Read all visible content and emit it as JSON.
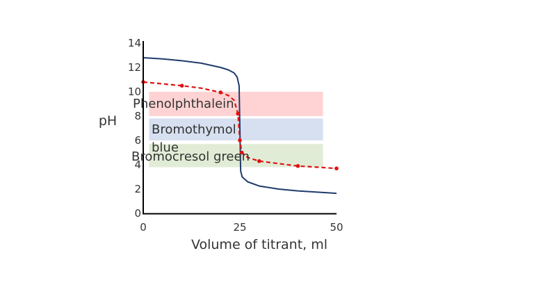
{
  "chart_data": {
    "type": "line",
    "xlabel": "Volume of titrant, ml",
    "ylabel": "pH",
    "xlim": [
      0,
      50
    ],
    "ylim": [
      0,
      14
    ],
    "x_ticks": [
      "0",
      "25",
      "50"
    ],
    "y_ticks": [
      "0",
      "2",
      "4",
      "6",
      "8",
      "10",
      "12",
      "14"
    ],
    "grid": false,
    "series": [
      {
        "style": "solid",
        "color": "#1f3b6b",
        "points": [
          [
            0,
            12.8
          ],
          [
            5,
            12.7
          ],
          [
            10,
            12.55
          ],
          [
            15,
            12.35
          ],
          [
            20,
            12.0
          ],
          [
            22,
            11.8
          ],
          [
            23.5,
            11.55
          ],
          [
            24.3,
            11.2
          ],
          [
            24.8,
            10.5
          ],
          [
            25,
            7
          ],
          [
            25.2,
            3.5
          ],
          [
            25.6,
            3.0
          ],
          [
            27,
            2.6
          ],
          [
            30,
            2.25
          ],
          [
            35,
            2.0
          ],
          [
            40,
            1.85
          ],
          [
            45,
            1.75
          ],
          [
            50,
            1.65
          ]
        ]
      },
      {
        "style": "dashed",
        "color": "#e01010",
        "markers": [
          [
            0,
            10.8
          ],
          [
            10,
            10.5
          ],
          [
            20,
            9.95
          ],
          [
            24.5,
            8.2
          ],
          [
            25,
            6.0
          ],
          [
            25.5,
            5.0
          ],
          [
            30,
            4.3
          ],
          [
            40,
            3.9
          ],
          [
            50,
            3.7
          ]
        ],
        "points": [
          [
            0,
            10.8
          ],
          [
            5,
            10.65
          ],
          [
            10,
            10.5
          ],
          [
            15,
            10.3
          ],
          [
            20,
            9.95
          ],
          [
            22,
            9.7
          ],
          [
            23.5,
            9.3
          ],
          [
            24.5,
            8.2
          ],
          [
            25,
            6.0
          ],
          [
            25.5,
            5.0
          ],
          [
            27,
            4.6
          ],
          [
            30,
            4.3
          ],
          [
            35,
            4.1
          ],
          [
            40,
            3.9
          ],
          [
            45,
            3.8
          ],
          [
            50,
            3.7
          ]
        ]
      }
    ],
    "bands": [
      {
        "label": "Phenolphthalein",
        "y0": 8.0,
        "y1": 10.0,
        "x0": 1.5,
        "x1": 46.5,
        "color": "#ffd3d3"
      },
      {
        "label": "Bromothymol blue",
        "label_lines": [
          "Bromothymol",
          "blue"
        ],
        "y0": 6.0,
        "y1": 7.8,
        "x0": 1.5,
        "x1": 46.5,
        "color": "#d6e0f0"
      },
      {
        "label": "Bromocresol green",
        "y0": 3.8,
        "y1": 5.7,
        "x0": 1.5,
        "x1": 46.5,
        "color": "#e1ecd6"
      }
    ]
  }
}
